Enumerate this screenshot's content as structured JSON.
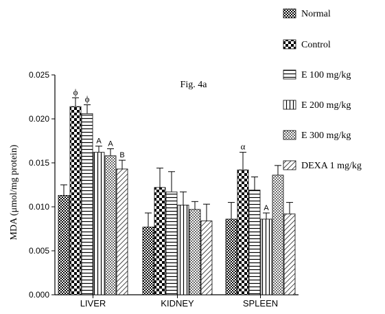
{
  "chart_data": {
    "type": "bar",
    "title": "Fig. 4a",
    "ylabel": "MDA (μmol/mg protein)",
    "xlabel": "",
    "ylim": [
      0,
      0.025
    ],
    "yticks": [
      "0.000",
      "0.005",
      "0.010",
      "0.015",
      "0.020",
      "0.025"
    ],
    "categories": [
      "LIVER",
      "KIDNEY",
      "SPLEEN"
    ],
    "legend_position": "top-right",
    "series": [
      {
        "name": "Normal",
        "pattern": "small-checker",
        "values": [
          0.0113,
          0.0077,
          0.0086
        ],
        "errors": [
          0.0012,
          0.0016,
          0.0019
        ],
        "annotations": [
          "",
          "",
          ""
        ]
      },
      {
        "name": "Control",
        "pattern": "large-checker",
        "values": [
          0.0214,
          0.0122,
          0.0142
        ],
        "errors": [
          0.001,
          0.0022,
          0.002
        ],
        "annotations": [
          "ϕ",
          "",
          "α"
        ]
      },
      {
        "name": "E 100 mg/kg",
        "pattern": "horizontal-lines",
        "values": [
          0.0206,
          0.0117,
          0.0119
        ],
        "errors": [
          0.001,
          0.0023,
          0.0015
        ],
        "annotations": [
          "ϕ",
          "",
          ""
        ]
      },
      {
        "name": "E 200 mg/kg",
        "pattern": "vertical-lines",
        "values": [
          0.0162,
          0.0102,
          0.0086
        ],
        "errors": [
          0.0007,
          0.0015,
          0.0007
        ],
        "annotations": [
          "A",
          "",
          "A"
        ]
      },
      {
        "name": "E 300 mg/kg",
        "pattern": "dots",
        "values": [
          0.0158,
          0.0097,
          0.0136
        ],
        "errors": [
          0.0008,
          0.0009,
          0.0011
        ],
        "annotations": [
          "A",
          "",
          ""
        ]
      },
      {
        "name": "DEXA 1 mg/kg",
        "pattern": "diagonal-lines",
        "values": [
          0.0143,
          0.0084,
          0.0092
        ],
        "errors": [
          0.001,
          0.0019,
          0.0013
        ],
        "annotations": [
          "B",
          "",
          ""
        ]
      }
    ]
  }
}
